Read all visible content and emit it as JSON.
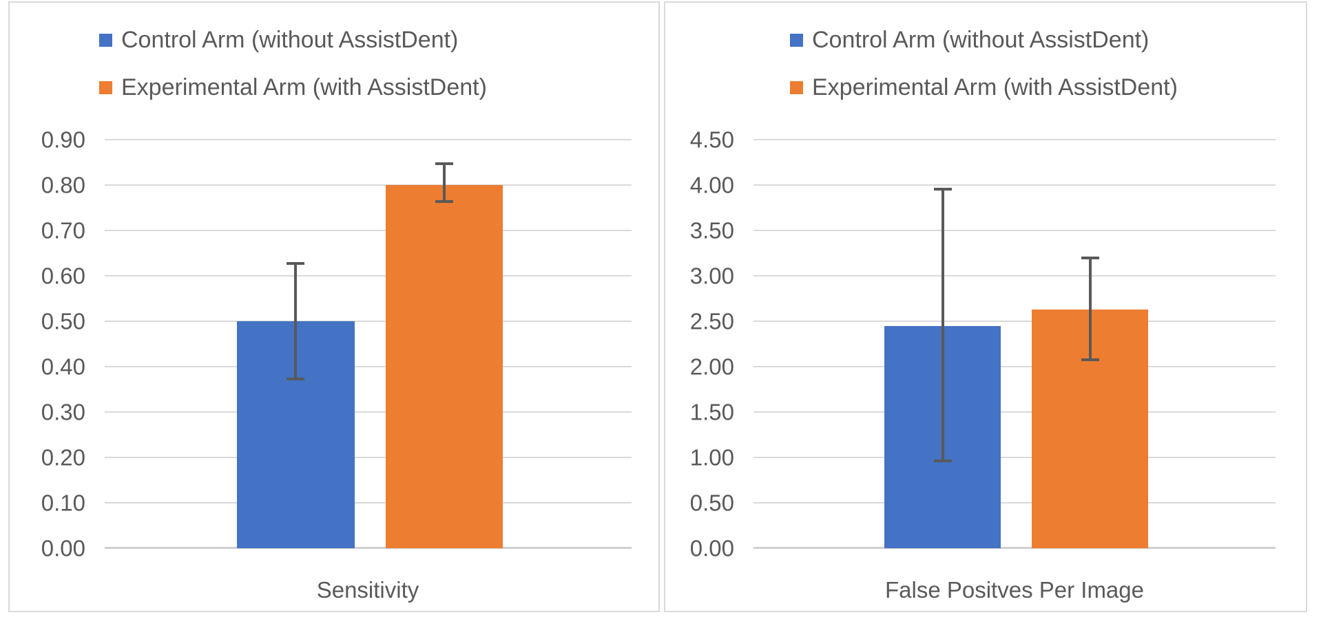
{
  "colors": {
    "control_blue": "#4472C4",
    "experimental_orange": "#ED7D31",
    "gridline": "#D9D9D9",
    "axis_line": "#D0D0D0",
    "text": "#595959",
    "error_bar": "#595959",
    "panel_border": "#D9D9D9",
    "background": "#FFFFFF"
  },
  "legend": {
    "items": [
      {
        "label": "Control Arm (without AssistDent)",
        "color": "#4472C4"
      },
      {
        "label": "Experimental Arm (with AssistDent)",
        "color": "#ED7D31"
      }
    ]
  },
  "chart_data": [
    {
      "type": "bar",
      "title": "",
      "xlabel": "Sensitivity",
      "ylabel": "",
      "categories": [
        "Sensitivity"
      ],
      "series": [
        {
          "name": "Control Arm (without AssistDent)",
          "key": "control",
          "color": "#4472C4",
          "values": [
            0.5
          ],
          "error_low": [
            0.37
          ],
          "error_high": [
            0.63
          ]
        },
        {
          "name": "Experimental Arm (with AssistDent)",
          "key": "experimental",
          "color": "#ED7D31",
          "values": [
            0.8
          ],
          "error_low": [
            0.76
          ],
          "error_high": [
            0.85
          ]
        }
      ],
      "ylim": [
        0,
        0.9
      ],
      "ytick_step": 0.1,
      "ytick_labels": [
        "0.00",
        "0.10",
        "0.20",
        "0.30",
        "0.40",
        "0.50",
        "0.60",
        "0.70",
        "0.80",
        "0.90"
      ],
      "grid": true,
      "legend_position": "top"
    },
    {
      "type": "bar",
      "title": "",
      "xlabel": "False Positves Per Image",
      "ylabel": "",
      "categories": [
        "False Positves Per Image"
      ],
      "series": [
        {
          "name": "Control Arm (without AssistDent)",
          "key": "control",
          "color": "#4472C4",
          "values": [
            2.45
          ],
          "error_low": [
            0.95
          ],
          "error_high": [
            3.97
          ]
        },
        {
          "name": "Experimental Arm (with AssistDent)",
          "key": "experimental",
          "color": "#ED7D31",
          "values": [
            2.63
          ],
          "error_low": [
            2.06
          ],
          "error_high": [
            3.21
          ]
        }
      ],
      "ylim": [
        0,
        4.5
      ],
      "ytick_step": 0.5,
      "ytick_labels": [
        "0.00",
        "0.50",
        "1.00",
        "1.50",
        "2.00",
        "2.50",
        "3.00",
        "3.50",
        "4.00",
        "4.50"
      ],
      "grid": true,
      "legend_position": "top"
    }
  ]
}
